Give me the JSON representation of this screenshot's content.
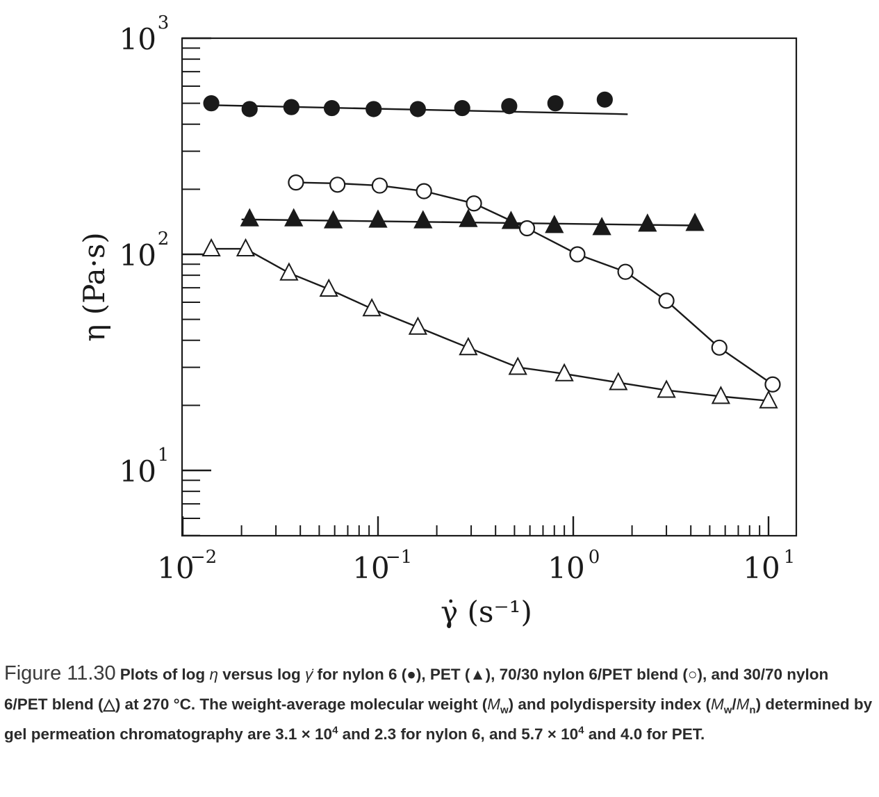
{
  "chart_data": {
    "type": "scatter",
    "xlabel": "γ̇ (s⁻¹)",
    "ylabel": "η (Pa·s)",
    "xscale": "log",
    "yscale": "log",
    "xlim": [
      0.01,
      15
    ],
    "ylim": [
      5,
      1000
    ],
    "xticks": [
      {
        "value": 0.01,
        "base": "10",
        "exp": "−2"
      },
      {
        "value": 0.1,
        "base": "10",
        "exp": "−1"
      },
      {
        "value": 1,
        "base": "10",
        "exp": "0"
      },
      {
        "value": 10,
        "base": "10",
        "exp": "1"
      }
    ],
    "yticks": [
      {
        "value": 10,
        "base": "10",
        "exp": "1"
      },
      {
        "value": 100,
        "base": "10",
        "exp": "2"
      },
      {
        "value": 1000,
        "base": "10",
        "exp": "3"
      }
    ],
    "grid": false,
    "legend": "none",
    "series": [
      {
        "marker": "filled-circle",
        "x": [
          0.014,
          0.022,
          0.036,
          0.058,
          0.095,
          0.16,
          0.27,
          0.47,
          0.81,
          1.45
        ],
        "y": [
          500,
          470,
          480,
          475,
          470,
          470,
          475,
          485,
          500,
          520
        ],
        "fit_x": [
          0.014,
          1.9
        ],
        "fit_y": [
          490,
          445
        ]
      },
      {
        "marker": "open-circle",
        "x": [
          0.038,
          0.062,
          0.102,
          0.172,
          0.31,
          0.58,
          1.05,
          1.85,
          3.0,
          5.6,
          10.5
        ],
        "y": [
          215,
          210,
          208,
          196,
          172,
          132,
          100,
          83,
          61,
          37,
          25
        ],
        "fit_x": [
          0.038,
          0.062,
          0.102,
          0.172,
          0.31,
          0.58,
          1.05,
          1.85,
          3.0,
          5.6,
          10.5
        ],
        "fit_y": [
          215,
          213,
          208,
          196,
          172,
          132,
          100,
          83,
          61,
          37,
          25
        ]
      },
      {
        "marker": "filled-triangle",
        "x": [
          0.022,
          0.037,
          0.059,
          0.1,
          0.17,
          0.29,
          0.48,
          0.8,
          1.4,
          2.4,
          4.2
        ],
        "y": [
          146,
          146,
          143,
          144,
          143,
          145,
          142,
          136,
          133,
          138,
          139
        ],
        "fit_x": [
          0.02,
          4.2
        ],
        "fit_y": [
          145,
          136
        ]
      },
      {
        "marker": "open-triangle",
        "x": [
          0.014,
          0.021,
          0.035,
          0.056,
          0.093,
          0.16,
          0.29,
          0.52,
          0.9,
          1.7,
          3.0,
          5.7,
          10.0
        ],
        "y": [
          106,
          106,
          82,
          69,
          56,
          46,
          37,
          30,
          28,
          25.5,
          23.5,
          22,
          21
        ],
        "fit_x": [
          0.014,
          0.021,
          0.035,
          0.056,
          0.093,
          0.16,
          0.29,
          0.52,
          0.9,
          1.7,
          3.0,
          5.7,
          10.0
        ],
        "fit_y": [
          106,
          106,
          82,
          69,
          56,
          46,
          37,
          30,
          28,
          25.5,
          23.5,
          22,
          21
        ]
      }
    ]
  },
  "caption": {
    "label": "Figure 11.30",
    "text_1": "Plots of log ",
    "eta": "η",
    "text_2": " versus log ",
    "gammadot": "γ̇",
    "text_3": " for nylon 6 (●), PET (▲), 70/30 nylon 6/PET blend (○), and 30/70 nylon 6/PET blend (△) at 270 °C. The weight-average molecular weight (",
    "mw_1": "M",
    "mw_1_sub": "w",
    "text_4": ") and polydispersity index (",
    "mw_2": "M",
    "mw_2_sub": "w",
    "slash": "/",
    "mn": "M",
    "mn_sub": "n",
    "text_5": ") determined by gel permeation chromatography are 3.1 × 10",
    "exp_1": "4",
    "text_6": " and 2.3 for nylon 6, and 5.7 × 10",
    "exp_2": "4",
    "text_7": " and 4.0 for PET."
  }
}
